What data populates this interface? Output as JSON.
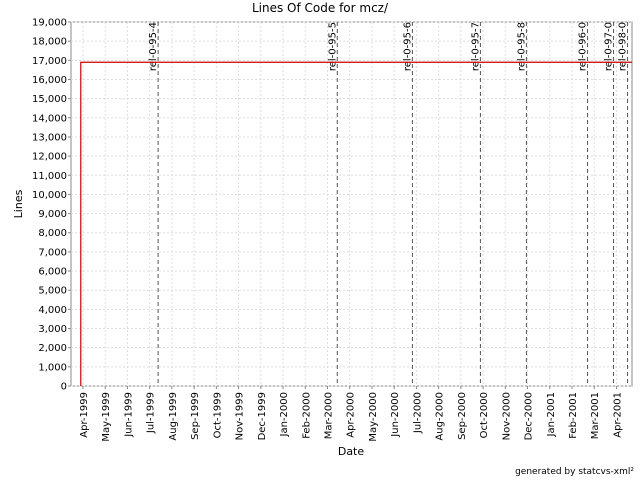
{
  "chart_data": {
    "type": "line",
    "title": "Lines Of Code for mcz/",
    "x_label": "Date",
    "y_label": "Lines",
    "footer": "generated by statcvs-xml²",
    "grid": true,
    "xlim": [
      -0.54,
      24.7
    ],
    "ylim": [
      0,
      19000
    ],
    "xticks": [
      {
        "value": 0,
        "label": "Apr-1999"
      },
      {
        "value": 1,
        "label": "May-1999"
      },
      {
        "value": 2,
        "label": "Jun-1999"
      },
      {
        "value": 3,
        "label": "Jul-1999"
      },
      {
        "value": 4,
        "label": "Aug-1999"
      },
      {
        "value": 5,
        "label": "Sep-1999"
      },
      {
        "value": 6,
        "label": "Oct-1999"
      },
      {
        "value": 7,
        "label": "Nov-1999"
      },
      {
        "value": 8,
        "label": "Dec-1999"
      },
      {
        "value": 9,
        "label": "Jan-2000"
      },
      {
        "value": 10,
        "label": "Feb-2000"
      },
      {
        "value": 11,
        "label": "Mar-2000"
      },
      {
        "value": 12,
        "label": "Apr-2000"
      },
      {
        "value": 13,
        "label": "May-2000"
      },
      {
        "value": 14,
        "label": "Jun-2000"
      },
      {
        "value": 15,
        "label": "Jul-2000"
      },
      {
        "value": 16,
        "label": "Aug-2000"
      },
      {
        "value": 17,
        "label": "Sep-2000"
      },
      {
        "value": 18,
        "label": "Oct-2000"
      },
      {
        "value": 19,
        "label": "Nov-2000"
      },
      {
        "value": 20,
        "label": "Dec-2000"
      },
      {
        "value": 21,
        "label": "Jan-2001"
      },
      {
        "value": 22,
        "label": "Feb-2001"
      },
      {
        "value": 23,
        "label": "Mar-2001"
      },
      {
        "value": 24,
        "label": "Apr-2001"
      }
    ],
    "yticks": [
      0,
      {
        "value": 1000,
        "label": "1,000"
      },
      {
        "value": 2000,
        "label": "2,000"
      },
      {
        "value": 3000,
        "label": "3,000"
      },
      {
        "value": 4000,
        "label": "4,000"
      },
      {
        "value": 5000,
        "label": "5,000"
      },
      {
        "value": 6000,
        "label": "6,000"
      },
      {
        "value": 7000,
        "label": "7,000"
      },
      {
        "value": 8000,
        "label": "8,000"
      },
      {
        "value": 9000,
        "label": "9,000"
      },
      {
        "value": 10000,
        "label": "10,000"
      },
      {
        "value": 11000,
        "label": "11,000"
      },
      {
        "value": 12000,
        "label": "12,000"
      },
      {
        "value": 13000,
        "label": "13,000"
      },
      {
        "value": 14000,
        "label": "14,000"
      },
      {
        "value": 15000,
        "label": "15,000"
      },
      {
        "value": 16000,
        "label": "16,000"
      },
      {
        "value": 17000,
        "label": "17,000"
      },
      {
        "value": 18000,
        "label": "18,000"
      },
      {
        "value": 19000,
        "label": "19,000"
      }
    ],
    "series": [
      {
        "color": "#cc0000",
        "x": [
          -0.1,
          -0.1,
          24.7
        ],
        "values": [
          0,
          16900,
          16900
        ]
      }
    ],
    "annotations": [
      {
        "label": "rel-0-95-4",
        "x": 3.38
      },
      {
        "label": "rel-0-95-5",
        "x": 11.44
      },
      {
        "label": "rel-0-95-6",
        "x": 14.82
      },
      {
        "label": "rel-0-95-7",
        "x": 17.88
      },
      {
        "label": "rel-0-95-8",
        "x": 19.95
      },
      {
        "label": "rel-0-96-0",
        "x": 22.7
      },
      {
        "label": "rel-0-97-0",
        "x": 23.87
      },
      {
        "label": "rel-0-98-0",
        "x": 24.5
      }
    ]
  }
}
